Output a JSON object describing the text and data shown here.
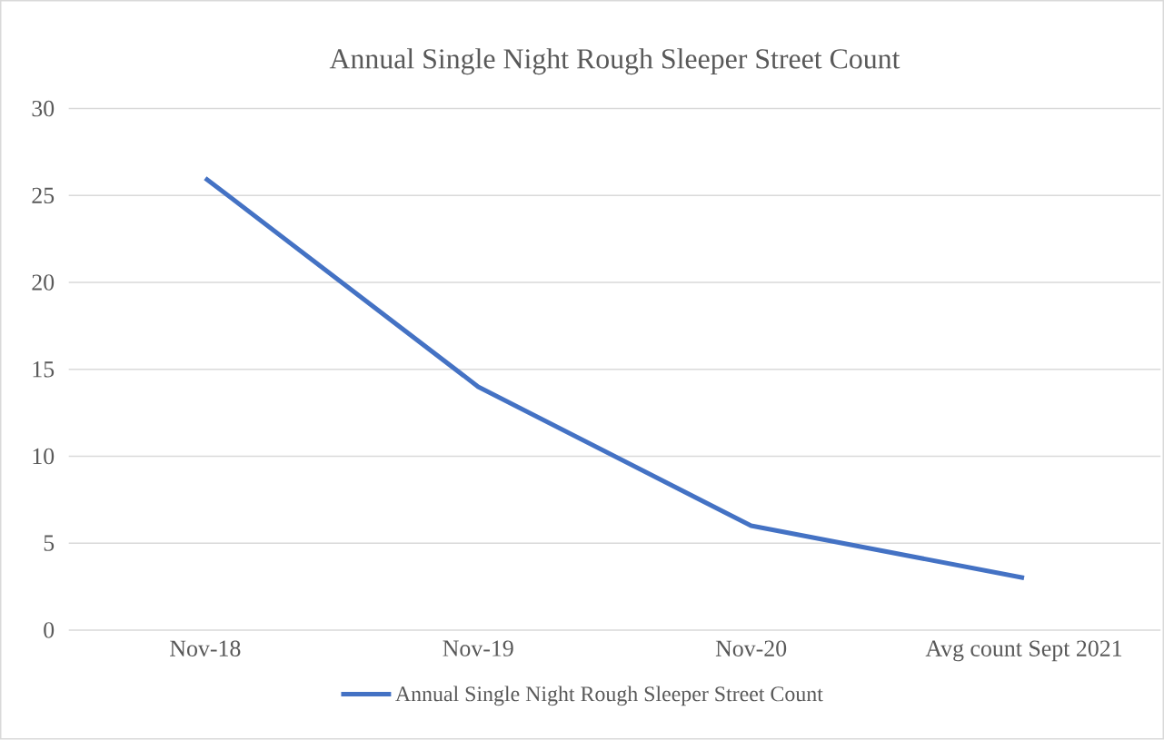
{
  "chart_data": {
    "type": "line",
    "title": "Annual Single Night Rough Sleeper Street Count",
    "categories": [
      "Nov-18",
      "Nov-19",
      "Nov-20",
      "Avg count Sept 2021"
    ],
    "series": [
      {
        "name": "Annual Single Night Rough Sleeper Street Count",
        "color": "#4472c4",
        "values": [
          26,
          14,
          6,
          3
        ]
      }
    ],
    "ylim": [
      0,
      30
    ],
    "yticks": [
      0,
      5,
      10,
      15,
      20,
      25,
      30
    ],
    "grid": "y",
    "legend": "bottom",
    "marker": "none",
    "line_style": "solid"
  }
}
